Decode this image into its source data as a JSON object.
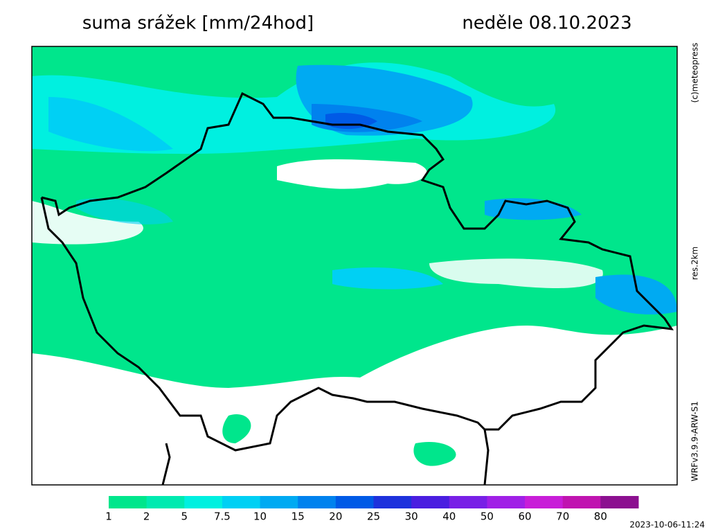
{
  "header": {
    "title": "suma srážek [mm/24hod]",
    "date": "neděle 08.10.2023"
  },
  "side_labels": [
    "(c)meteopress",
    "res.2km",
    "WRFv3.9.9-ARW-S1"
  ],
  "legend": {
    "ticks": [
      1,
      2,
      5,
      7.5,
      10,
      15,
      20,
      25,
      30,
      40,
      50,
      60,
      70,
      80
    ],
    "colors": [
      "#00e68c",
      "#00eab0",
      "#00f0e0",
      "#00d0f4",
      "#00aaf2",
      "#0082ee",
      "#005ae6",
      "#1e32dc",
      "#4a1ee0",
      "#7820e6",
      "#a020e6",
      "#c81ed8",
      "#c014b0",
      "#8c1090"
    ]
  },
  "timestamp": "2023-10-06-11:24"
}
